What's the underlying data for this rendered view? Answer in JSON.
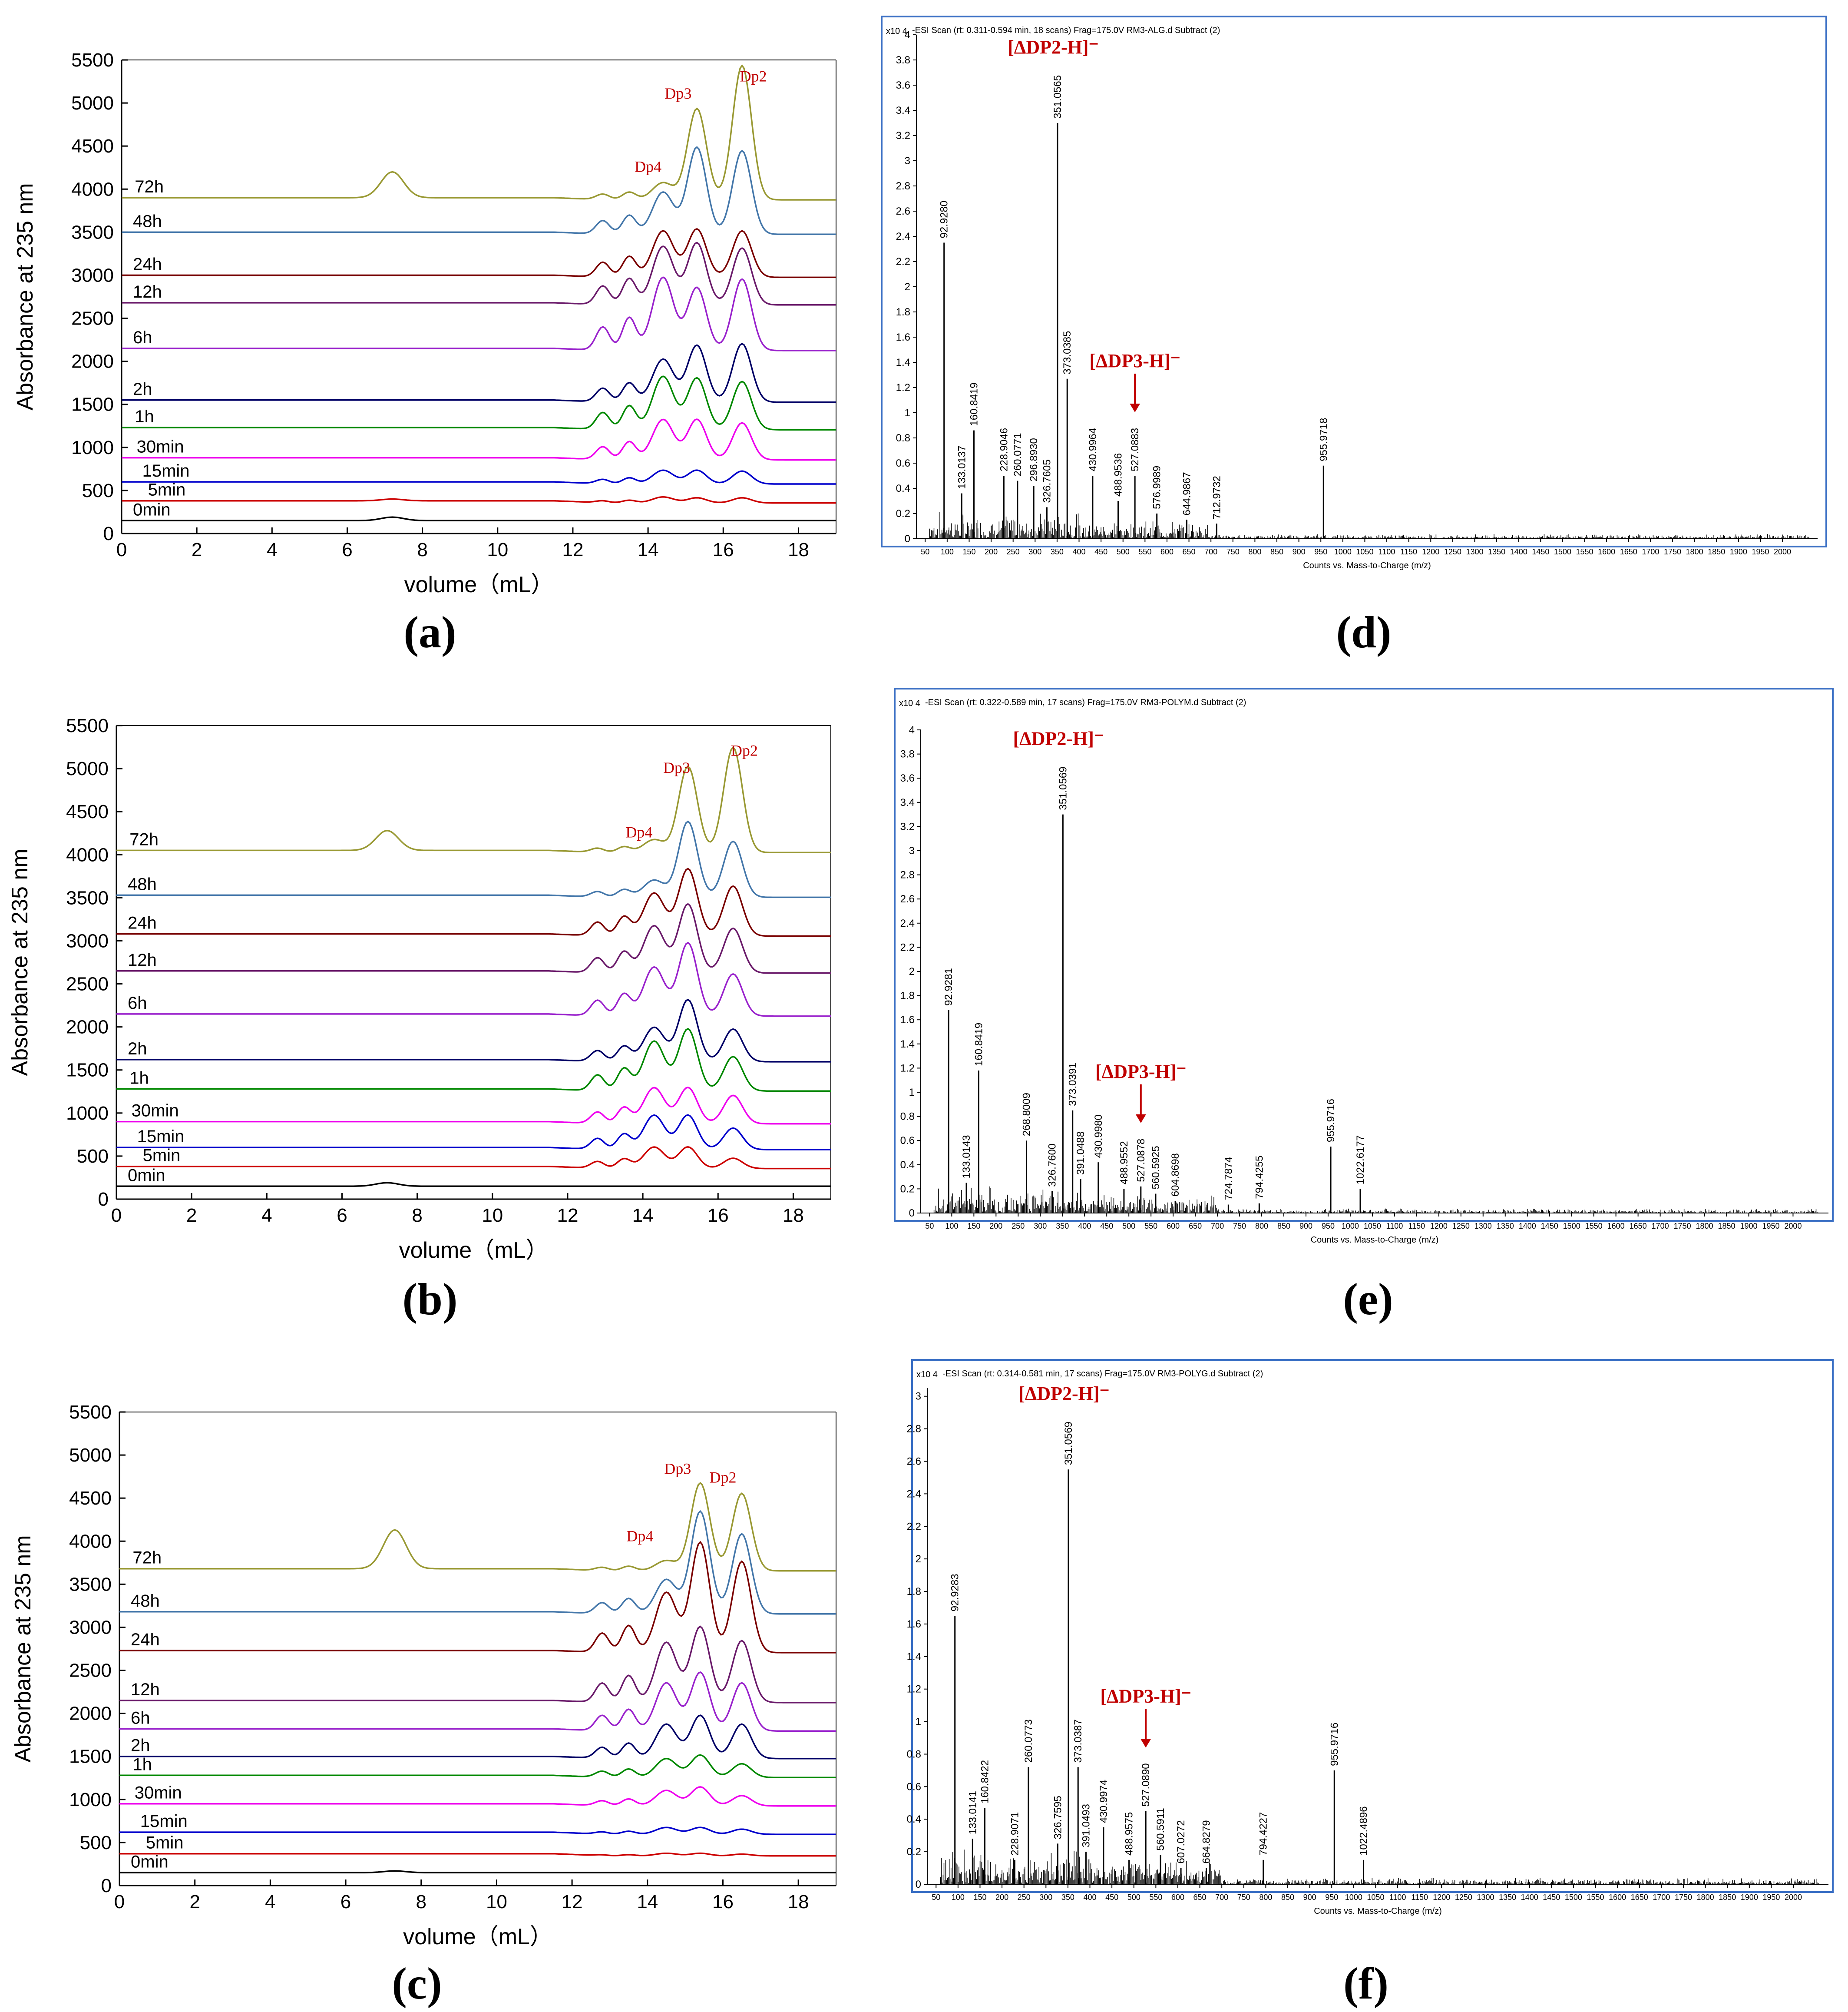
{
  "figure": {
    "panel_labels": [
      "(a)",
      "(b)",
      "(c)",
      "(d)",
      "(e)",
      "(f)"
    ]
  },
  "colors": {
    "0min": "#000000",
    "5min": "#cc0000",
    "15min": "#0000cc",
    "30min": "#ee00ee",
    "1h": "#008800",
    "2h": "#000066",
    "6h": "#9922cc",
    "12h": "#6a1a6a",
    "24h": "#7a0000",
    "48h": "#4477aa",
    "72h": "#999933",
    "ms_frame": "#3a6fc4",
    "ms_annot": "#c00000"
  },
  "chart_data": [
    {
      "type": "line",
      "panel": "(a)",
      "xlabel": "volume（mL）",
      "ylabel": "Absorbance at 235 nm",
      "xlim": [
        0,
        19
      ],
      "ylim": [
        0,
        5500
      ],
      "xticks": [
        0,
        2,
        4,
        6,
        8,
        10,
        12,
        14,
        16,
        18
      ],
      "yticks": [
        0,
        500,
        1000,
        1500,
        2000,
        2500,
        3000,
        3500,
        4000,
        4500,
        5000,
        5500
      ],
      "peak_positions": {
        "Dp4": 14.4,
        "Dp3": 15.3,
        "Dp2": 16.5,
        "solvent": 7.2
      },
      "peak_labels": [
        {
          "text": "Dp4",
          "x": 14.0,
          "y": 4200
        },
        {
          "text": "Dp3",
          "x": 14.8,
          "y": 5050
        },
        {
          "text": "Dp2",
          "x": 16.8,
          "y": 5250
        }
      ],
      "series": [
        {
          "name": "0min",
          "baseline": 150,
          "Dp4": 0,
          "Dp3": 0,
          "Dp2": 0,
          "solvent": 40
        },
        {
          "name": "5min",
          "baseline": 380,
          "Dp4": 70,
          "Dp3": 60,
          "Dp2": 60,
          "solvent": 20
        },
        {
          "name": "15min",
          "baseline": 600,
          "Dp4": 160,
          "Dp3": 160,
          "Dp2": 150,
          "solvent": 0
        },
        {
          "name": "30min",
          "baseline": 880,
          "Dp4": 470,
          "Dp3": 470,
          "Dp2": 430,
          "solvent": 0
        },
        {
          "name": "1h",
          "baseline": 1230,
          "Dp4": 620,
          "Dp3": 600,
          "Dp2": 560,
          "solvent": 0
        },
        {
          "name": "2h",
          "baseline": 1550,
          "Dp4": 500,
          "Dp3": 660,
          "Dp2": 680,
          "solvent": 0
        },
        {
          "name": "6h",
          "baseline": 2150,
          "Dp4": 850,
          "Dp3": 730,
          "Dp2": 830,
          "solvent": 0
        },
        {
          "name": "12h",
          "baseline": 2680,
          "Dp4": 680,
          "Dp3": 720,
          "Dp2": 660,
          "solvent": 0
        },
        {
          "name": "24h",
          "baseline": 3000,
          "Dp4": 540,
          "Dp3": 560,
          "Dp2": 540,
          "solvent": 0
        },
        {
          "name": "48h",
          "baseline": 3500,
          "Dp4": 490,
          "Dp3": 1010,
          "Dp2": 970,
          "solvent": 0
        },
        {
          "name": "72h",
          "baseline": 3900,
          "Dp4": 200,
          "Dp3": 1060,
          "Dp2": 1560,
          "solvent": 300
        }
      ]
    },
    {
      "type": "line",
      "panel": "(b)",
      "xlabel": "volume（mL）",
      "ylabel": "Absorbance at 235 nm",
      "xlim": [
        0,
        19
      ],
      "ylim": [
        0,
        5500
      ],
      "xticks": [
        0,
        2,
        4,
        6,
        8,
        10,
        12,
        14,
        16,
        18
      ],
      "yticks": [
        0,
        500,
        1000,
        1500,
        2000,
        2500,
        3000,
        3500,
        4000,
        4500,
        5000,
        5500
      ],
      "peak_positions": {
        "Dp4": 14.3,
        "Dp3": 15.2,
        "Dp2": 16.4,
        "solvent": 7.2
      },
      "peak_labels": [
        {
          "text": "Dp4",
          "x": 13.9,
          "y": 4200
        },
        {
          "text": "Dp3",
          "x": 14.9,
          "y": 4950
        },
        {
          "text": "Dp2",
          "x": 16.7,
          "y": 5150
        }
      ],
      "series": [
        {
          "name": "0min",
          "baseline": 150,
          "Dp4": 0,
          "Dp3": 0,
          "Dp2": 0,
          "solvent": 40
        },
        {
          "name": "5min",
          "baseline": 380,
          "Dp4": 250,
          "Dp3": 250,
          "Dp2": 120,
          "solvent": 0
        },
        {
          "name": "15min",
          "baseline": 600,
          "Dp4": 400,
          "Dp3": 400,
          "Dp2": 250,
          "solvent": 0
        },
        {
          "name": "30min",
          "baseline": 900,
          "Dp4": 420,
          "Dp3": 420,
          "Dp2": 330,
          "solvent": 0
        },
        {
          "name": "1h",
          "baseline": 1280,
          "Dp4": 580,
          "Dp3": 720,
          "Dp2": 400,
          "solvent": 0
        },
        {
          "name": "2h",
          "baseline": 1620,
          "Dp4": 400,
          "Dp3": 720,
          "Dp2": 380,
          "solvent": 0
        },
        {
          "name": "6h",
          "baseline": 2150,
          "Dp4": 570,
          "Dp3": 850,
          "Dp2": 490,
          "solvent": 0
        },
        {
          "name": "12h",
          "baseline": 2650,
          "Dp4": 550,
          "Dp3": 800,
          "Dp2": 520,
          "solvent": 0
        },
        {
          "name": "24h",
          "baseline": 3080,
          "Dp4": 500,
          "Dp3": 780,
          "Dp2": 580,
          "solvent": 0
        },
        {
          "name": "48h",
          "baseline": 3530,
          "Dp4": 200,
          "Dp3": 880,
          "Dp2": 650,
          "solvent": 0
        },
        {
          "name": "72h",
          "baseline": 4050,
          "Dp4": 150,
          "Dp3": 1000,
          "Dp2": 1220,
          "solvent": 230
        }
      ]
    },
    {
      "type": "line",
      "panel": "(c)",
      "xlabel": "volume（mL）",
      "ylabel": "Absorbance at 235 nm",
      "xlim": [
        0,
        19
      ],
      "ylim": [
        0,
        5500
      ],
      "xticks": [
        0,
        2,
        4,
        6,
        8,
        10,
        12,
        14,
        16,
        18
      ],
      "yticks": [
        0,
        500,
        1000,
        1500,
        2000,
        2500,
        3000,
        3500,
        4000,
        4500,
        5000,
        5500
      ],
      "peak_positions": {
        "Dp4": 14.5,
        "Dp3": 15.4,
        "Dp2": 16.5,
        "solvent": 7.3
      },
      "peak_labels": [
        {
          "text": "Dp4",
          "x": 13.8,
          "y": 4000
        },
        {
          "text": "Dp3",
          "x": 14.8,
          "y": 4780
        },
        {
          "text": "Dp2",
          "x": 16.0,
          "y": 4680
        }
      ],
      "series": [
        {
          "name": "0min",
          "baseline": 150,
          "Dp4": 0,
          "Dp3": 0,
          "Dp2": 0,
          "solvent": 20
        },
        {
          "name": "5min",
          "baseline": 370,
          "Dp4": 30,
          "Dp3": 30,
          "Dp2": 20,
          "solvent": 0
        },
        {
          "name": "15min",
          "baseline": 620,
          "Dp4": 80,
          "Dp3": 80,
          "Dp2": 60,
          "solvent": 0
        },
        {
          "name": "30min",
          "baseline": 950,
          "Dp4": 180,
          "Dp3": 220,
          "Dp2": 120,
          "solvent": 0
        },
        {
          "name": "1h",
          "baseline": 1280,
          "Dp4": 220,
          "Dp3": 260,
          "Dp2": 160,
          "solvent": 0
        },
        {
          "name": "2h",
          "baseline": 1500,
          "Dp4": 400,
          "Dp3": 500,
          "Dp2": 400,
          "solvent": 0
        },
        {
          "name": "6h",
          "baseline": 1820,
          "Dp4": 560,
          "Dp3": 680,
          "Dp2": 560,
          "solvent": 0
        },
        {
          "name": "12h",
          "baseline": 2150,
          "Dp4": 700,
          "Dp3": 880,
          "Dp2": 720,
          "solvent": 0
        },
        {
          "name": "24h",
          "baseline": 2730,
          "Dp4": 700,
          "Dp3": 1280,
          "Dp2": 1060,
          "solvent": 0
        },
        {
          "name": "48h",
          "baseline": 3180,
          "Dp4": 400,
          "Dp3": 1190,
          "Dp2": 930,
          "solvent": 0
        },
        {
          "name": "72h",
          "baseline": 3680,
          "Dp4": 120,
          "Dp3": 1020,
          "Dp2": 900,
          "solvent": 450
        }
      ]
    },
    {
      "type": "bar",
      "panel": "(d)",
      "header": "-ESI Scan (rt: 0.311-0.594 min, 18 scans) Frag=175.0V RM3-ALG.d  Subtract (2)",
      "xlabel": "Counts vs. Mass-to-Charge (m/z)",
      "yunit": "x10 4",
      "xlim": [
        30,
        2080
      ],
      "ylim": [
        0,
        4.0
      ],
      "xticks": [
        50,
        100,
        150,
        200,
        250,
        300,
        350,
        400,
        450,
        500,
        550,
        600,
        650,
        700,
        750,
        800,
        850,
        900,
        950,
        1000,
        1050,
        1100,
        1150,
        1200,
        1250,
        1300,
        1350,
        1400,
        1450,
        1500,
        1550,
        1600,
        1650,
        1700,
        1750,
        1800,
        1850,
        1900,
        1950,
        2000
      ],
      "yticks": [
        0,
        0.2,
        0.4,
        0.6,
        0.8,
        1,
        1.2,
        1.4,
        1.6,
        1.8,
        2,
        2.2,
        2.4,
        2.6,
        2.8,
        3,
        3.2,
        3.4,
        3.6,
        3.8,
        4
      ],
      "peaks": [
        {
          "mz": 92.928,
          "intensity": 2.35,
          "label": "92.9280"
        },
        {
          "mz": 133.0137,
          "intensity": 0.36,
          "label": "133.0137"
        },
        {
          "mz": 160.8419,
          "intensity": 0.86,
          "label": "160.8419"
        },
        {
          "mz": 228.9046,
          "intensity": 0.5,
          "label": "228.9046"
        },
        {
          "mz": 260.0771,
          "intensity": 0.46,
          "label": "260.0771"
        },
        {
          "mz": 296.893,
          "intensity": 0.42,
          "label": "296.8930"
        },
        {
          "mz": 326.7605,
          "intensity": 0.25,
          "label": "326.7605"
        },
        {
          "mz": 351.0565,
          "intensity": 3.3,
          "label": "351.0565"
        },
        {
          "mz": 373.0385,
          "intensity": 1.27,
          "label": "373.0385"
        },
        {
          "mz": 430.9964,
          "intensity": 0.5,
          "label": "430.9964"
        },
        {
          "mz": 488.9536,
          "intensity": 0.3,
          "label": "488.9536"
        },
        {
          "mz": 527.0883,
          "intensity": 0.5,
          "label": "527.0883"
        },
        {
          "mz": 576.9989,
          "intensity": 0.2,
          "label": "576.9989"
        },
        {
          "mz": 644.9867,
          "intensity": 0.15,
          "label": "644.9867"
        },
        {
          "mz": 712.9732,
          "intensity": 0.12,
          "label": "712.9732"
        },
        {
          "mz": 955.9718,
          "intensity": 0.58,
          "label": "955.9718"
        }
      ],
      "annotations": [
        {
          "text": "[ΔDP2-H]⁻",
          "mz": 351.0565
        },
        {
          "text": "[ΔDP3-H]⁻",
          "mz": 527.0883
        }
      ]
    },
    {
      "type": "bar",
      "panel": "(e)",
      "header": "-ESI Scan (rt: 0.322-0.589 min, 17 scans) Frag=175.0V RM3-POLYM.d  Subtract (2)",
      "xlabel": "Counts vs. Mass-to-Charge (m/z)",
      "yunit": "x10 4",
      "xlim": [
        30,
        2080
      ],
      "ylim": [
        0,
        4.0
      ],
      "xticks": [
        50,
        100,
        150,
        200,
        250,
        300,
        350,
        400,
        450,
        500,
        550,
        600,
        650,
        700,
        750,
        800,
        850,
        900,
        950,
        1000,
        1050,
        1100,
        1150,
        1200,
        1250,
        1300,
        1350,
        1400,
        1450,
        1500,
        1550,
        1600,
        1650,
        1700,
        1750,
        1800,
        1850,
        1900,
        1950,
        2000
      ],
      "yticks": [
        0,
        0.2,
        0.4,
        0.6,
        0.8,
        1,
        1.2,
        1.4,
        1.6,
        1.8,
        2,
        2.2,
        2.4,
        2.6,
        2.8,
        3,
        3.2,
        3.4,
        3.6,
        3.8,
        4
      ],
      "peaks": [
        {
          "mz": 92.9281,
          "intensity": 1.68,
          "label": "92.9281"
        },
        {
          "mz": 133.0143,
          "intensity": 0.25,
          "label": "133.0143"
        },
        {
          "mz": 160.8419,
          "intensity": 1.18,
          "label": "160.8419"
        },
        {
          "mz": 268.8009,
          "intensity": 0.6,
          "label": "268.8009"
        },
        {
          "mz": 326.76,
          "intensity": 0.18,
          "label": "326.7600"
        },
        {
          "mz": 351.0569,
          "intensity": 3.3,
          "label": "351.0569"
        },
        {
          "mz": 373.0391,
          "intensity": 0.85,
          "label": "373.0391"
        },
        {
          "mz": 391.0488,
          "intensity": 0.28,
          "label": "391.0488"
        },
        {
          "mz": 430.998,
          "intensity": 0.42,
          "label": "430.9980"
        },
        {
          "mz": 488.9552,
          "intensity": 0.2,
          "label": "488.9552"
        },
        {
          "mz": 527.0878,
          "intensity": 0.22,
          "label": "527.0878"
        },
        {
          "mz": 560.5925,
          "intensity": 0.16,
          "label": "560.5925"
        },
        {
          "mz": 604.8698,
          "intensity": 0.1,
          "label": "604.8698"
        },
        {
          "mz": 724.7874,
          "intensity": 0.07,
          "label": "724.7874"
        },
        {
          "mz": 794.4255,
          "intensity": 0.08,
          "label": "794.4255"
        },
        {
          "mz": 955.9716,
          "intensity": 0.55,
          "label": "955.9716"
        },
        {
          "mz": 1022.6177,
          "intensity": 0.2,
          "label": "1022.6177"
        }
      ],
      "annotations": [
        {
          "text": "[ΔDP2-H]⁻",
          "mz": 351.0569
        },
        {
          "text": "[ΔDP3-H]⁻",
          "mz": 527.0878
        }
      ]
    },
    {
      "type": "bar",
      "panel": "(f)",
      "header": "-ESI Scan (rt: 0.314-0.581 min, 17 scans) Frag=175.0V RM3-POLYG.d  Subtract (2)",
      "xlabel": "Counts vs. Mass-to-Charge (m/z)",
      "yunit": "x10 4",
      "xlim": [
        30,
        2080
      ],
      "ylim": [
        0,
        3.05
      ],
      "xticks": [
        50,
        100,
        150,
        200,
        250,
        300,
        350,
        400,
        450,
        500,
        550,
        600,
        650,
        700,
        750,
        800,
        850,
        900,
        950,
        1000,
        1050,
        1100,
        1150,
        1200,
        1250,
        1300,
        1350,
        1400,
        1450,
        1500,
        1550,
        1600,
        1650,
        1700,
        1750,
        1800,
        1850,
        1900,
        1950,
        2000
      ],
      "yticks": [
        0,
        0.2,
        0.4,
        0.6,
        0.8,
        1,
        1.2,
        1.4,
        1.6,
        1.8,
        2,
        2.2,
        2.4,
        2.6,
        2.8,
        3
      ],
      "peaks": [
        {
          "mz": 92.9283,
          "intensity": 1.65,
          "label": "92.9283"
        },
        {
          "mz": 133.0141,
          "intensity": 0.28,
          "label": "133.0141"
        },
        {
          "mz": 160.8422,
          "intensity": 0.47,
          "label": "160.8422"
        },
        {
          "mz": 228.9071,
          "intensity": 0.15,
          "label": "228.9071"
        },
        {
          "mz": 260.0773,
          "intensity": 0.72,
          "label": "260.0773"
        },
        {
          "mz": 326.7595,
          "intensity": 0.25,
          "label": "326.7595"
        },
        {
          "mz": 351.0569,
          "intensity": 2.55,
          "label": "351.0569"
        },
        {
          "mz": 373.0387,
          "intensity": 0.72,
          "label": "373.0387"
        },
        {
          "mz": 391.0493,
          "intensity": 0.2,
          "label": "391.0493"
        },
        {
          "mz": 430.9974,
          "intensity": 0.35,
          "label": "430.9974"
        },
        {
          "mz": 488.9575,
          "intensity": 0.15,
          "label": "488.9575"
        },
        {
          "mz": 527.089,
          "intensity": 0.45,
          "label": "527.0890"
        },
        {
          "mz": 560.5911,
          "intensity": 0.18,
          "label": "560.5911"
        },
        {
          "mz": 607.0272,
          "intensity": 0.1,
          "label": "607.0272"
        },
        {
          "mz": 664.8279,
          "intensity": 0.1,
          "label": "664.8279"
        },
        {
          "mz": 794.4227,
          "intensity": 0.15,
          "label": "794.4227"
        },
        {
          "mz": 955.9716,
          "intensity": 0.7,
          "label": "955.9716"
        },
        {
          "mz": 1022.4896,
          "intensity": 0.15,
          "label": "1022.4896"
        }
      ],
      "annotations": [
        {
          "text": "[ΔDP2-H]⁻",
          "mz": 351.0569
        },
        {
          "text": "[ΔDP3-H]⁻",
          "mz": 527.089
        }
      ]
    }
  ]
}
